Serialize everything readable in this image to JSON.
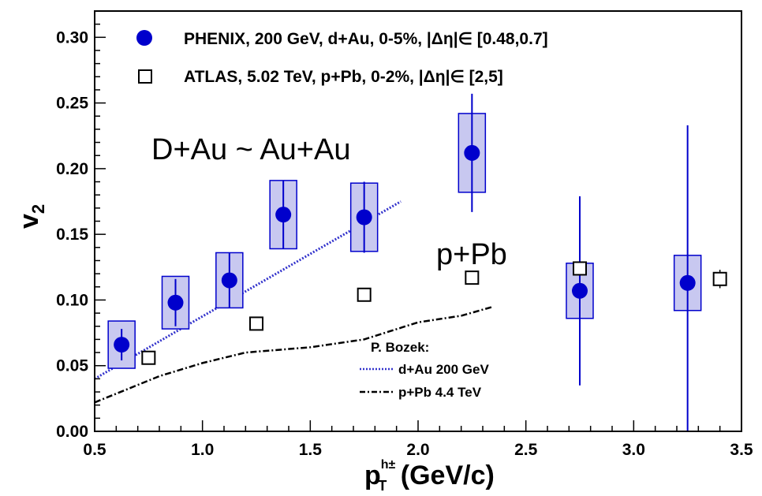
{
  "chart_data": {
    "type": "scatter",
    "xlim": [
      0.5,
      3.5
    ],
    "ylim": [
      0.0,
      0.32
    ],
    "x_ticks": [
      "0.5",
      "1.0",
      "1.5",
      "2.0",
      "2.5",
      "3.0",
      "3.5"
    ],
    "y_ticks": [
      "0.00",
      "0.05",
      "0.10",
      "0.15",
      "0.20",
      "0.25",
      "0.30"
    ],
    "xlabel": {
      "base": "p",
      "sub": "T",
      "sup": "h±",
      "rest": " (GeV/c)"
    },
    "ylabel": {
      "base": "v",
      "sub": "2"
    },
    "series": [
      {
        "name": "PHENIX, 200 GeV, d+Au, 0-5%, |Δη|∈ [0.48,0.7]",
        "marker": "filled-circle",
        "color": "#0000cc",
        "box_fill": "#c8c8f0",
        "x": [
          0.625,
          0.875,
          1.125,
          1.375,
          1.75,
          2.25,
          2.75,
          3.25
        ],
        "y": [
          0.066,
          0.098,
          0.115,
          0.165,
          0.163,
          0.212,
          0.107,
          0.113
        ],
        "stat_err": [
          0.012,
          0.018,
          0.021,
          0.026,
          0.027,
          0.045,
          0.072,
          0.12
        ],
        "sys_err": [
          0.018,
          0.02,
          0.021,
          0.026,
          0.026,
          0.03,
          0.021,
          0.021
        ]
      },
      {
        "name": "ATLAS, 5.02 TeV, p+Pb, 0-2%, |Δη|∈ [2,5]",
        "marker": "open-square",
        "color": "#000000",
        "x": [
          0.75,
          1.25,
          1.75,
          2.25,
          2.75,
          3.4
        ],
        "y": [
          0.056,
          0.082,
          0.104,
          0.117,
          0.124,
          0.116
        ],
        "stat_err": [
          0.0,
          0.0,
          0.0,
          0.0,
          0.0,
          0.007
        ]
      },
      {
        "name": "d+Au 200 GeV",
        "style": "dotted-line",
        "color": "#3333cc",
        "x": [
          0.5,
          1.92
        ],
        "y": [
          0.04,
          0.175
        ]
      },
      {
        "name": "p+Pb 4.4 TeV",
        "style": "dash-dot-line",
        "color": "#000000",
        "x": [
          0.5,
          0.8,
          1.0,
          1.2,
          1.5,
          1.75,
          2.0,
          2.2,
          2.35
        ],
        "y": [
          0.022,
          0.042,
          0.052,
          0.06,
          0.064,
          0.07,
          0.083,
          0.088,
          0.095
        ]
      }
    ],
    "annotations": {
      "daa": "D+Au  ~ Au+Au",
      "ppb": "p+Pb",
      "inset_title": "P. Bozek:"
    }
  }
}
